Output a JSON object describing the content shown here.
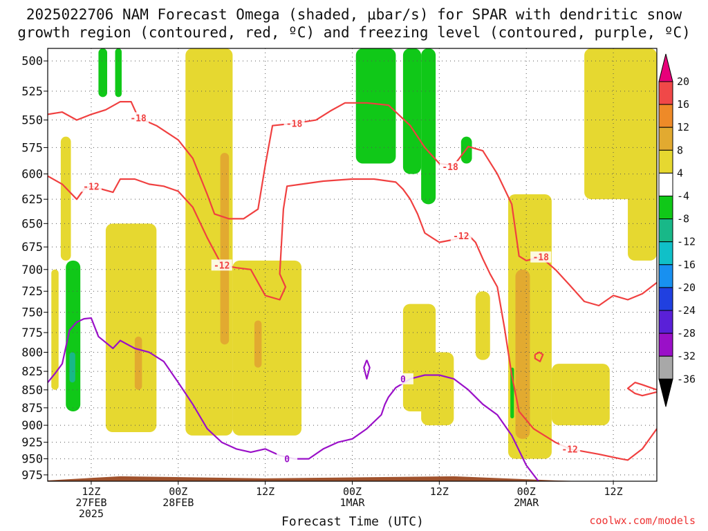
{
  "title": {
    "line1": "2025022706 NAM Forecast Omega (shaded, μbar/s) for SPAR with dendritic snow",
    "line2": "growth region (contoured, red, ºC) and freezing level (contoured, purple, ºC)"
  },
  "credit": "coolwx.com/models",
  "colors": {
    "dendritic_contour": "#f04040",
    "freezing_contour": "#9a10c8",
    "ground": "#a0522d"
  },
  "chart_data": {
    "type": "time-height cross section",
    "xlabel": "Forecast Time (UTC)",
    "ylabel": "",
    "x_range_hours": [
      0,
      84
    ],
    "y_range_hPa": [
      985,
      490
    ],
    "y_scale": "log-pressure",
    "y_ticks": [
      500,
      525,
      550,
      575,
      600,
      625,
      650,
      675,
      700,
      725,
      750,
      775,
      800,
      825,
      850,
      875,
      900,
      925,
      950,
      975
    ],
    "x_ticks": [
      {
        "hour": 6,
        "lines": [
          "12Z",
          "27FEB",
          "2025"
        ]
      },
      {
        "hour": 18,
        "lines": [
          "00Z",
          "28FEB"
        ]
      },
      {
        "hour": 30,
        "lines": [
          "12Z"
        ]
      },
      {
        "hour": 42,
        "lines": [
          "00Z",
          "1MAR"
        ]
      },
      {
        "hour": 54,
        "lines": [
          "12Z"
        ]
      },
      {
        "hour": 66,
        "lines": [
          "00Z",
          "2MAR"
        ]
      },
      {
        "hour": 78,
        "lines": [
          "12Z"
        ]
      }
    ],
    "grid": true,
    "colorbar": {
      "placement": "right",
      "labels": [
        "20",
        "16",
        "12",
        "8",
        "4",
        "-4",
        "-8",
        "-12",
        "-16",
        "-20",
        "-24",
        "-28",
        "-32",
        "-36"
      ],
      "bins": [
        {
          "from": 20,
          "to": 24,
          "color": "#e8007a"
        },
        {
          "from": 16,
          "to": 20,
          "color": "#f04848"
        },
        {
          "from": 12,
          "to": 16,
          "color": "#ee8a28"
        },
        {
          "from": 8,
          "to": 12,
          "color": "#e2aa30"
        },
        {
          "from": 4,
          "to": 8,
          "color": "#e6d830"
        },
        {
          "from": -4,
          "to": 4,
          "color": "#ffffff"
        },
        {
          "from": -8,
          "to": -4,
          "color": "#10c818"
        },
        {
          "from": -12,
          "to": -8,
          "color": "#18b888"
        },
        {
          "from": -16,
          "to": -12,
          "color": "#10c0c8"
        },
        {
          "from": -20,
          "to": -16,
          "color": "#1890f0"
        },
        {
          "from": -24,
          "to": -20,
          "color": "#2040e0"
        },
        {
          "from": -28,
          "to": -24,
          "color": "#5a20d8"
        },
        {
          "from": -32,
          "to": -28,
          "color": "#9a10c8"
        },
        {
          "from": -36,
          "to": -32,
          "color": "#a8a8a8"
        },
        {
          "from": -40,
          "to": -36,
          "color": "#000000"
        }
      ]
    },
    "shaded_regions": [
      {
        "hours": [
          0.5,
          1.5
        ],
        "hPa": [
          850,
          700
        ],
        "value": 5
      },
      {
        "hours": [
          1.8,
          3.2
        ],
        "hPa": [
          690,
          565
        ],
        "value": 5
      },
      {
        "hours": [
          2.5,
          4.5
        ],
        "hPa": [
          880,
          690
        ],
        "value": -6
      },
      {
        "hours": [
          3.0,
          3.8
        ],
        "hPa": [
          840,
          800
        ],
        "value": -10
      },
      {
        "hours": [
          7.0,
          8.2
        ],
        "hPa": [
          530,
          490
        ],
        "value": -6
      },
      {
        "hours": [
          9.3,
          10.2
        ],
        "hPa": [
          530,
          490
        ],
        "value": -5
      },
      {
        "hours": [
          8.0,
          15.0
        ],
        "hPa": [
          910,
          650
        ],
        "value": 5
      },
      {
        "hours": [
          12.0,
          13.0
        ],
        "hPa": [
          850,
          780
        ],
        "value": 9
      },
      {
        "hours": [
          19.0,
          25.5
        ],
        "hPa": [
          915,
          490
        ],
        "value": 5
      },
      {
        "hours": [
          23.8,
          25.0
        ],
        "hPa": [
          790,
          580
        ],
        "value": 9
      },
      {
        "hours": [
          25.5,
          35.0
        ],
        "hPa": [
          915,
          690
        ],
        "value": 5
      },
      {
        "hours": [
          28.5,
          29.5
        ],
        "hPa": [
          820,
          760
        ],
        "value": 9
      },
      {
        "hours": [
          42.5,
          48.0
        ],
        "hPa": [
          590,
          490
        ],
        "value": -6
      },
      {
        "hours": [
          49.0,
          51.5
        ],
        "hPa": [
          600,
          490
        ],
        "value": -6
      },
      {
        "hours": [
          51.5,
          53.5
        ],
        "hPa": [
          630,
          490
        ],
        "value": -7
      },
      {
        "hours": [
          57.0,
          58.5
        ],
        "hPa": [
          590,
          565
        ],
        "value": -6
      },
      {
        "hours": [
          49.0,
          53.5
        ],
        "hPa": [
          880,
          740
        ],
        "value": 5
      },
      {
        "hours": [
          51.5,
          56.0
        ],
        "hPa": [
          900,
          800
        ],
        "value": 5
      },
      {
        "hours": [
          59.0,
          61.0
        ],
        "hPa": [
          810,
          725
        ],
        "value": 5
      },
      {
        "hours": [
          63.5,
          69.5
        ],
        "hPa": [
          950,
          620
        ],
        "value": 5
      },
      {
        "hours": [
          64.5,
          66.5
        ],
        "hPa": [
          920,
          700
        ],
        "value": 9
      },
      {
        "hours": [
          63.8,
          64.3
        ],
        "hPa": [
          890,
          820
        ],
        "value": -6
      },
      {
        "hours": [
          69.5,
          77.5
        ],
        "hPa": [
          900,
          815
        ],
        "value": 5
      },
      {
        "hours": [
          74.0,
          84.0
        ],
        "hPa": [
          625,
          490
        ],
        "value": 5
      },
      {
        "hours": [
          80.0,
          84.0
        ],
        "hPa": [
          690,
          610
        ],
        "value": 5
      }
    ],
    "contours": [
      {
        "name": "-18",
        "kind": "dendritic",
        "points": [
          [
            0,
            545
          ],
          [
            2,
            543
          ],
          [
            4,
            550
          ],
          [
            6,
            545
          ],
          [
            8,
            541
          ],
          [
            10,
            534
          ],
          [
            11.5,
            534
          ],
          [
            12.5,
            548
          ],
          [
            15,
            555
          ],
          [
            18,
            568
          ],
          [
            20,
            585
          ],
          [
            22,
            620
          ],
          [
            23,
            640
          ],
          [
            25,
            645
          ],
          [
            27,
            645
          ],
          [
            29,
            635
          ],
          [
            30,
            592
          ],
          [
            31,
            555
          ],
          [
            34,
            553
          ],
          [
            37,
            550
          ],
          [
            39,
            542
          ],
          [
            41,
            535
          ],
          [
            44,
            535
          ],
          [
            47,
            537
          ],
          [
            50,
            555
          ],
          [
            52,
            575
          ],
          [
            54,
            590
          ],
          [
            56,
            592
          ],
          [
            58,
            574
          ],
          [
            60,
            578
          ],
          [
            62,
            600
          ],
          [
            64,
            630
          ],
          [
            65,
            685
          ],
          [
            66,
            690
          ],
          [
            68,
            686
          ],
          [
            70,
            700
          ],
          [
            72,
            718
          ],
          [
            74,
            737
          ],
          [
            76,
            742
          ],
          [
            78,
            730
          ],
          [
            80,
            735
          ],
          [
            82,
            728
          ],
          [
            84,
            715
          ]
        ],
        "labels": [
          [
            12.5,
            548
          ],
          [
            34,
            553
          ],
          [
            55.5,
            593
          ],
          [
            68,
            686
          ]
        ]
      },
      {
        "name": "-12",
        "kind": "dendritic",
        "points": [
          [
            0,
            602
          ],
          [
            2,
            610
          ],
          [
            4,
            625
          ],
          [
            5,
            615
          ],
          [
            6,
            612
          ],
          [
            9,
            618
          ],
          [
            10,
            605
          ],
          [
            12,
            605
          ],
          [
            14,
            610
          ],
          [
            16,
            612
          ],
          [
            18,
            617
          ],
          [
            20,
            633
          ],
          [
            22,
            665
          ],
          [
            24,
            695
          ],
          [
            26,
            698
          ],
          [
            28,
            700
          ],
          [
            30,
            730
          ],
          [
            32,
            735
          ],
          [
            32.8,
            720
          ],
          [
            32,
            705
          ],
          [
            32.5,
            635
          ],
          [
            33,
            612
          ],
          [
            35,
            610
          ],
          [
            38,
            607
          ],
          [
            42,
            605
          ],
          [
            45,
            605
          ],
          [
            48,
            608
          ],
          [
            49,
            615
          ],
          [
            50,
            625
          ],
          [
            51,
            640
          ],
          [
            52,
            660
          ],
          [
            53,
            665
          ],
          [
            54,
            670
          ],
          [
            56,
            667
          ],
          [
            58,
            662
          ],
          [
            59,
            670
          ],
          [
            60,
            688
          ],
          [
            61,
            705
          ],
          [
            62,
            720
          ],
          [
            63,
            770
          ],
          [
            64,
            830
          ],
          [
            65,
            880
          ],
          [
            67,
            905
          ],
          [
            70,
            925
          ],
          [
            72,
            935
          ],
          [
            76,
            943
          ],
          [
            79,
            950
          ],
          [
            80,
            952
          ],
          [
            82,
            935
          ],
          [
            84,
            905
          ]
        ],
        "labels": [
          [
            6,
            612
          ],
          [
            24,
            695
          ],
          [
            57,
            663
          ],
          [
            72,
            935
          ]
        ]
      },
      {
        "name": "-12",
        "kind": "dendritic",
        "points": [
          [
            67.2,
            803
          ],
          [
            67.8,
            800
          ],
          [
            68.3,
            803
          ],
          [
            67.9,
            812
          ],
          [
            67.2,
            808
          ],
          [
            67.2,
            803
          ]
        ],
        "labels": []
      },
      {
        "name": "-12",
        "kind": "dendritic",
        "points": [
          [
            84,
            853
          ],
          [
            82,
            858
          ],
          [
            81,
            855
          ],
          [
            80,
            848
          ],
          [
            81,
            840
          ],
          [
            82,
            843
          ],
          [
            84,
            850
          ]
        ],
        "labels": []
      },
      {
        "name": "0",
        "kind": "freezing",
        "points": [
          [
            0,
            840
          ],
          [
            1,
            828
          ],
          [
            2,
            815
          ],
          [
            3,
            772
          ],
          [
            4,
            762
          ],
          [
            5,
            758
          ],
          [
            6,
            757
          ],
          [
            7,
            780
          ],
          [
            9,
            795
          ],
          [
            10,
            785
          ],
          [
            12,
            795
          ],
          [
            14,
            800
          ],
          [
            16,
            812
          ],
          [
            18,
            840
          ],
          [
            20,
            870
          ],
          [
            22,
            905
          ],
          [
            24,
            925
          ],
          [
            26,
            935
          ],
          [
            28,
            940
          ],
          [
            30,
            935
          ],
          [
            32,
            945
          ],
          [
            34,
            950
          ],
          [
            36,
            950
          ],
          [
            38,
            935
          ],
          [
            40,
            925
          ],
          [
            42,
            920
          ],
          [
            44,
            905
          ],
          [
            46,
            885
          ],
          [
            46.5,
            870
          ],
          [
            47,
            860
          ],
          [
            48,
            847
          ],
          [
            50,
            835
          ],
          [
            52,
            830
          ],
          [
            54,
            830
          ],
          [
            56,
            835
          ],
          [
            58,
            850
          ],
          [
            60,
            870
          ],
          [
            62,
            885
          ],
          [
            64,
            915
          ],
          [
            66,
            960
          ],
          [
            68,
            990
          ]
        ],
        "labels": [
          [
            33,
            950
          ],
          [
            49,
            835
          ]
        ]
      },
      {
        "name": "0",
        "kind": "freezing",
        "points": [
          [
            44,
            810
          ],
          [
            44.4,
            820
          ],
          [
            44,
            835
          ],
          [
            43.6,
            820
          ],
          [
            44,
            810
          ]
        ],
        "labels": []
      }
    ]
  }
}
